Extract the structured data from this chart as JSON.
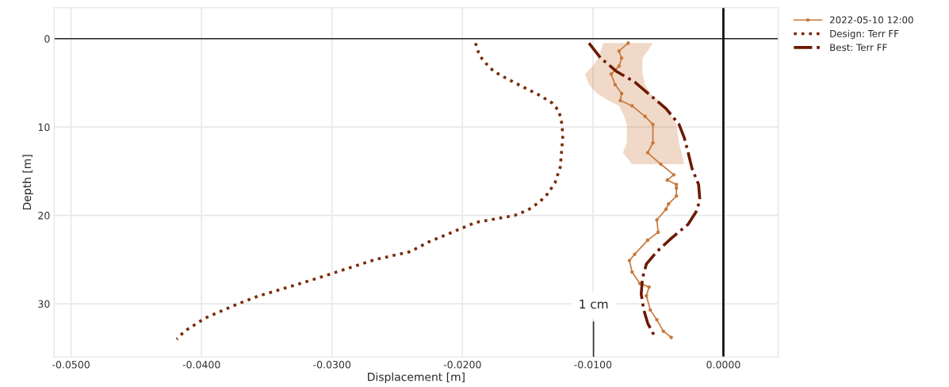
{
  "chart_data": {
    "type": "line",
    "orientation": "horizontal",
    "xlabel": "Displacement [m]",
    "ylabel": "Depth [m]",
    "xlim": [
      -0.0513,
      0.0042
    ],
    "ylim": [
      36,
      -3.5
    ],
    "xticks": [
      {
        "value": -0.05,
        "label": "-0.0500"
      },
      {
        "value": -0.04,
        "label": "-0.0400"
      },
      {
        "value": -0.03,
        "label": "-0.0300"
      },
      {
        "value": -0.02,
        "label": "-0.0200"
      },
      {
        "value": -0.01,
        "label": "-0.0100"
      },
      {
        "value": 0,
        "label": "0.0000"
      }
    ],
    "yticks": [
      0,
      10,
      20,
      30
    ],
    "grid": true,
    "legend": "right",
    "ref_lines": [
      {
        "axis": "y",
        "value": 0,
        "color": "#222222"
      },
      {
        "axis": "x",
        "value": 0,
        "color": "#111111"
      }
    ],
    "annotations": [
      "1 cm"
    ],
    "series": [
      {
        "name": "2022-05-10 12:00",
        "color": "#c8783a",
        "marker": "circle",
        "line_style": "solid",
        "x": [
          0.5,
          1.4,
          2.2,
          3.1,
          4.0,
          5.2,
          6.2,
          7.0,
          7.6,
          8.8,
          9.7,
          11.8,
          12.9,
          14.2,
          15.4,
          16.0,
          16.5,
          16.9,
          17.8,
          18.7,
          19.3,
          20.5,
          21.9,
          22.8,
          24.4,
          25.1,
          26.4,
          27.7,
          28.1,
          29.1,
          30.7,
          31.8,
          33.1,
          33.8
        ],
        "values": [
          -0.0073,
          -0.008,
          -0.0078,
          -0.008,
          -0.0086,
          -0.0083,
          -0.0078,
          -0.0079,
          -0.007,
          -0.006,
          -0.0054,
          -0.0054,
          -0.0058,
          -0.0048,
          -0.0038,
          -0.0043,
          -0.0036,
          -0.0036,
          -0.0036,
          -0.0042,
          -0.0044,
          -0.0051,
          -0.005,
          -0.0058,
          -0.0068,
          -0.0072,
          -0.007,
          -0.0064,
          -0.0057,
          -0.0059,
          -0.0056,
          -0.0051,
          -0.0046,
          -0.004
        ],
        "lower": [
          -0.0092,
          -0.0094,
          -0.0096,
          -0.01,
          -0.0106,
          -0.0103,
          -0.0097,
          -0.0088,
          -0.008,
          -0.0076,
          -0.0074,
          -0.0074,
          -0.0077,
          -0.007,
          null,
          null,
          null,
          null,
          null,
          null,
          null,
          null,
          null,
          null,
          null,
          null,
          null,
          null,
          null,
          null,
          null,
          null,
          null,
          null
        ],
        "upper": [
          -0.0054,
          -0.0058,
          -0.0062,
          -0.0062,
          -0.0062,
          -0.006,
          -0.0056,
          -0.005,
          -0.0046,
          -0.004,
          -0.0036,
          -0.0034,
          -0.0032,
          -0.003,
          null,
          null,
          null,
          null,
          null,
          null,
          null,
          null,
          null,
          null,
          null,
          null,
          null,
          null,
          null,
          null,
          null,
          null,
          null,
          null
        ]
      },
      {
        "name": "Design: Terr FF",
        "color": "#7a2a05",
        "marker": "none",
        "line_style": "dotted",
        "x": [
          0.5,
          1.9,
          2.8,
          3.7,
          4.6,
          5.5,
          6.4,
          7.3,
          8.2,
          9.5,
          10.9,
          12.7,
          14.5,
          16.3,
          17.6,
          18.5,
          19.4,
          20.0,
          20.8,
          22.1,
          23.0,
          24.1,
          25.0,
          27.1,
          28.0,
          29.1,
          30.0,
          31.6,
          33.1,
          34.0
        ],
        "values": [
          -0.019,
          -0.0187,
          -0.0182,
          -0.0176,
          -0.0165,
          -0.0153,
          -0.0141,
          -0.0131,
          -0.0126,
          -0.0124,
          -0.0123,
          -0.0124,
          -0.0125,
          -0.0129,
          -0.0135,
          -0.0141,
          -0.015,
          -0.016,
          -0.019,
          -0.0211,
          -0.0226,
          -0.024,
          -0.0267,
          -0.0311,
          -0.0331,
          -0.0356,
          -0.0372,
          -0.0397,
          -0.0413,
          -0.0419
        ]
      },
      {
        "name": "Best: Terr FF",
        "color": "#6b1a00",
        "marker": "none",
        "line_style": "dashdot",
        "x": [
          0.5,
          2.2,
          3.7,
          4.9,
          6.4,
          7.9,
          9.7,
          11.2,
          12.9,
          14.7,
          16.5,
          18.3,
          19.6,
          21.0,
          22.6,
          24.1,
          25.5,
          27.1,
          28.9,
          30.7,
          32.2,
          33.6
        ],
        "values": [
          -0.0103,
          -0.0094,
          -0.0082,
          -0.0068,
          -0.0056,
          -0.0044,
          -0.0034,
          -0.003,
          -0.0027,
          -0.0024,
          -0.0019,
          -0.0018,
          -0.0021,
          -0.0027,
          -0.004,
          -0.0051,
          -0.0059,
          -0.0062,
          -0.0063,
          -0.0061,
          -0.0058,
          -0.0053
        ]
      }
    ]
  }
}
